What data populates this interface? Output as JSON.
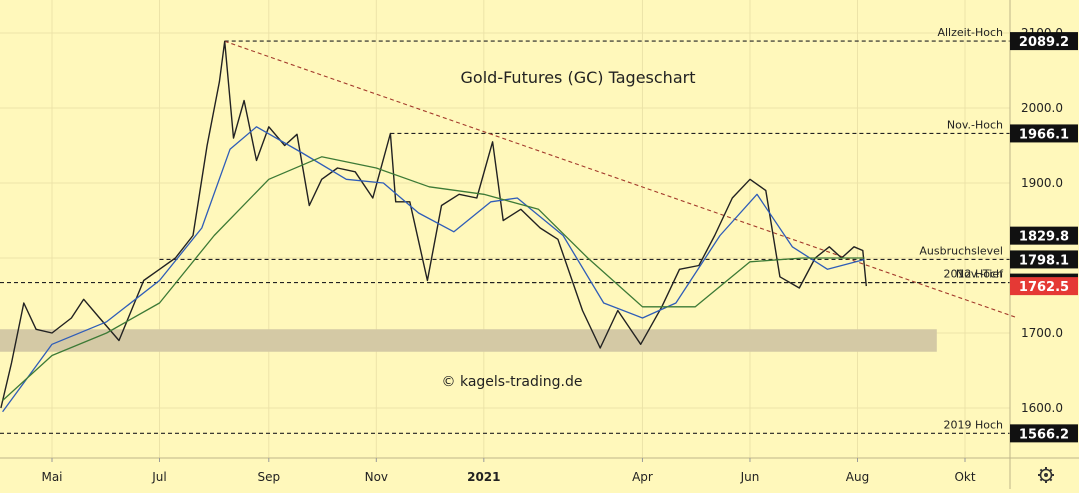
{
  "chart_data": {
    "type": "candlestick",
    "title": "Gold-Futures (GC) Tageschart",
    "watermark": "© kagels-trading.de",
    "x_axis": {
      "ticks": [
        {
          "label": "Mai",
          "date": "2020-05-01",
          "bold": false
        },
        {
          "label": "Jul",
          "date": "2020-07-01",
          "bold": false
        },
        {
          "label": "Sep",
          "date": "2020-09-01",
          "bold": false
        },
        {
          "label": "Nov",
          "date": "2020-11-01",
          "bold": false
        },
        {
          "label": "2021",
          "date": "2021-01-01",
          "bold": true
        },
        {
          "label": "Apr",
          "date": "2021-04-01",
          "bold": false
        },
        {
          "label": "Jun",
          "date": "2021-06-01",
          "bold": false
        },
        {
          "label": "Aug",
          "date": "2021-08-01",
          "bold": false
        },
        {
          "label": "Okt",
          "date": "2021-10-01",
          "bold": false
        }
      ]
    },
    "y_axis": {
      "ticks": [
        "1600.0",
        "1700.0",
        "1800.0",
        "1900.0",
        "2000.0",
        "2100.0"
      ],
      "tick_values": [
        1600,
        1700,
        1800,
        1900,
        2000,
        2100
      ],
      "range": [
        1550,
        2100
      ]
    },
    "levels": [
      {
        "name": "Allzeit-Hoch",
        "value": 2089.2,
        "label": "2089.2",
        "start": "2020-08-07"
      },
      {
        "name": "Nov.-Hoch",
        "value": 1966.1,
        "label": "1966.1",
        "start": "2020-11-09"
      },
      {
        "name": "Ausbruchslevel",
        "value": 1798.1,
        "label": "1798.1",
        "start": "2020-07-01"
      },
      {
        "name": "2012 Hoch",
        "value": 1767.2,
        "label": "1767.2",
        "start": "2020-04-01"
      },
      {
        "name": "Nov.-Tief",
        "value": 1767.2,
        "start": "2020-11-30"
      },
      {
        "name": "2019 Hoch",
        "value": 1566.2,
        "label": "1566.2",
        "start": "2020-04-01"
      }
    ],
    "price_badges": [
      {
        "label": "1829.8",
        "value": 1829.8,
        "color": "#111111"
      },
      {
        "label": "1762.5",
        "value": 1762.5,
        "color": "#e53935"
      }
    ],
    "support_zone": {
      "from": 1675,
      "to": 1705,
      "start": "2020-04-01",
      "end": "2021-09-15"
    },
    "trendline": {
      "from": {
        "date": "2020-08-07",
        "value": 2089
      },
      "to": {
        "date": "2021-10-31",
        "value": 1720
      }
    },
    "series": [
      {
        "name": "Kurs",
        "color": "#222222",
        "points": [
          [
            "2020-04-02",
            1600
          ],
          [
            "2020-04-08",
            1660
          ],
          [
            "2020-04-15",
            1740
          ],
          [
            "2020-04-22",
            1705
          ],
          [
            "2020-05-01",
            1700
          ],
          [
            "2020-05-12",
            1720
          ],
          [
            "2020-05-19",
            1745
          ],
          [
            "2020-05-28",
            1720
          ],
          [
            "2020-06-08",
            1690
          ],
          [
            "2020-06-22",
            1770
          ],
          [
            "2020-07-01",
            1785
          ],
          [
            "2020-07-10",
            1800
          ],
          [
            "2020-07-20",
            1830
          ],
          [
            "2020-07-28",
            1950
          ],
          [
            "2020-08-04",
            2035
          ],
          [
            "2020-08-07",
            2089
          ],
          [
            "2020-08-12",
            1960
          ],
          [
            "2020-08-18",
            2010
          ],
          [
            "2020-08-25",
            1930
          ],
          [
            "2020-09-01",
            1975
          ],
          [
            "2020-09-10",
            1950
          ],
          [
            "2020-09-17",
            1965
          ],
          [
            "2020-09-24",
            1870
          ],
          [
            "2020-10-01",
            1905
          ],
          [
            "2020-10-10",
            1920
          ],
          [
            "2020-10-20",
            1915
          ],
          [
            "2020-10-30",
            1880
          ],
          [
            "2020-11-09",
            1966
          ],
          [
            "2020-11-12",
            1875
          ],
          [
            "2020-11-20",
            1875
          ],
          [
            "2020-11-30",
            1770
          ],
          [
            "2020-12-08",
            1870
          ],
          [
            "2020-12-18",
            1885
          ],
          [
            "2020-12-28",
            1880
          ],
          [
            "2021-01-06",
            1955
          ],
          [
            "2021-01-12",
            1850
          ],
          [
            "2021-01-22",
            1865
          ],
          [
            "2021-02-02",
            1840
          ],
          [
            "2021-02-12",
            1825
          ],
          [
            "2021-02-26",
            1730
          ],
          [
            "2021-03-08",
            1680
          ],
          [
            "2021-03-18",
            1730
          ],
          [
            "2021-03-31",
            1685
          ],
          [
            "2021-04-12",
            1735
          ],
          [
            "2021-04-22",
            1785
          ],
          [
            "2021-05-03",
            1790
          ],
          [
            "2021-05-12",
            1830
          ],
          [
            "2021-05-22",
            1880
          ],
          [
            "2021-06-01",
            1905
          ],
          [
            "2021-06-10",
            1890
          ],
          [
            "2021-06-18",
            1775
          ],
          [
            "2021-06-29",
            1760
          ],
          [
            "2021-07-08",
            1800
          ],
          [
            "2021-07-16",
            1815
          ],
          [
            "2021-07-23",
            1800
          ],
          [
            "2021-07-30",
            1815
          ],
          [
            "2021-08-04",
            1810
          ],
          [
            "2021-08-06",
            1762.5
          ]
        ]
      },
      {
        "name": "MA kurz",
        "color": "#2f5db8",
        "points": [
          [
            "2020-04-03",
            1595
          ],
          [
            "2020-05-01",
            1685
          ],
          [
            "2020-06-01",
            1715
          ],
          [
            "2020-07-01",
            1770
          ],
          [
            "2020-07-25",
            1840
          ],
          [
            "2020-08-10",
            1945
          ],
          [
            "2020-08-25",
            1975
          ],
          [
            "2020-09-20",
            1940
          ],
          [
            "2020-10-15",
            1905
          ],
          [
            "2020-11-05",
            1900
          ],
          [
            "2020-11-25",
            1860
          ],
          [
            "2020-12-15",
            1835
          ],
          [
            "2021-01-05",
            1875
          ],
          [
            "2021-01-20",
            1880
          ],
          [
            "2021-02-15",
            1830
          ],
          [
            "2021-03-10",
            1740
          ],
          [
            "2021-04-01",
            1720
          ],
          [
            "2021-04-20",
            1740
          ],
          [
            "2021-05-15",
            1830
          ],
          [
            "2021-06-05",
            1885
          ],
          [
            "2021-06-25",
            1815
          ],
          [
            "2021-07-15",
            1785
          ],
          [
            "2021-08-05",
            1798
          ]
        ]
      },
      {
        "name": "MA lang",
        "color": "#3d7a36",
        "points": [
          [
            "2020-04-03",
            1610
          ],
          [
            "2020-05-01",
            1670
          ],
          [
            "2020-06-01",
            1700
          ],
          [
            "2020-07-01",
            1740
          ],
          [
            "2020-08-01",
            1830
          ],
          [
            "2020-09-01",
            1905
          ],
          [
            "2020-10-01",
            1935
          ],
          [
            "2020-11-01",
            1920
          ],
          [
            "2020-12-01",
            1895
          ],
          [
            "2021-01-01",
            1885
          ],
          [
            "2021-02-01",
            1865
          ],
          [
            "2021-03-01",
            1800
          ],
          [
            "2021-04-01",
            1735
          ],
          [
            "2021-05-01",
            1735
          ],
          [
            "2021-06-01",
            1795
          ],
          [
            "2021-07-01",
            1800
          ],
          [
            "2021-08-05",
            1800
          ]
        ]
      }
    ]
  }
}
